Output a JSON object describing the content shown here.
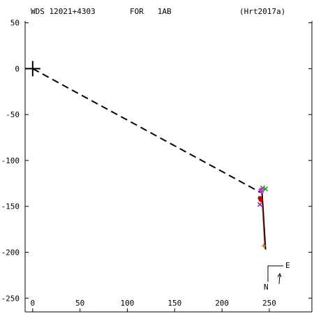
{
  "header": {
    "wds": "WDS 12021+4303",
    "pair": "FOR   1AB",
    "ref": "(Hrt2017a)"
  },
  "compass": {
    "east": "E",
    "north": "N"
  },
  "chart_data": {
    "type": "scatter",
    "xlim": [
      -8,
      295
    ],
    "ylim": [
      -265,
      52
    ],
    "x_ticks": [
      0,
      50,
      100,
      150,
      200,
      250
    ],
    "y_ticks": [
      50,
      0,
      -50,
      -100,
      -150,
      -200,
      -250
    ],
    "primary": {
      "x": 0,
      "y": 0,
      "marker": "plus"
    },
    "connector": {
      "x1": 0,
      "y1": 0,
      "x2": 241,
      "y2": -135,
      "dash": true
    },
    "orbit_line": [
      [
        242,
        -130
      ],
      [
        246,
        -197
      ]
    ],
    "fit_line": [
      [
        242,
        -140
      ],
      [
        245,
        -193
      ]
    ],
    "observations": [
      {
        "x": 243,
        "y": -130,
        "marker": "x",
        "color": "#228b22"
      },
      {
        "x": 246,
        "y": -131,
        "marker": "x",
        "color": "#228b22"
      },
      {
        "x": 241,
        "y": -132,
        "marker": "dot",
        "color": "#cc33cc"
      },
      {
        "x": 242,
        "y": -134,
        "marker": "dot",
        "color": "#cc33cc"
      },
      {
        "x": 240,
        "y": -141,
        "marker": "dot",
        "color": "#cc0000"
      },
      {
        "x": 241,
        "y": -143,
        "marker": "dot",
        "color": "#cc0000"
      },
      {
        "x": 240,
        "y": -148,
        "marker": "x",
        "color": "#7b2cbf"
      },
      {
        "x": 244,
        "y": -193,
        "marker": "plus",
        "color": "#d08020"
      }
    ]
  }
}
